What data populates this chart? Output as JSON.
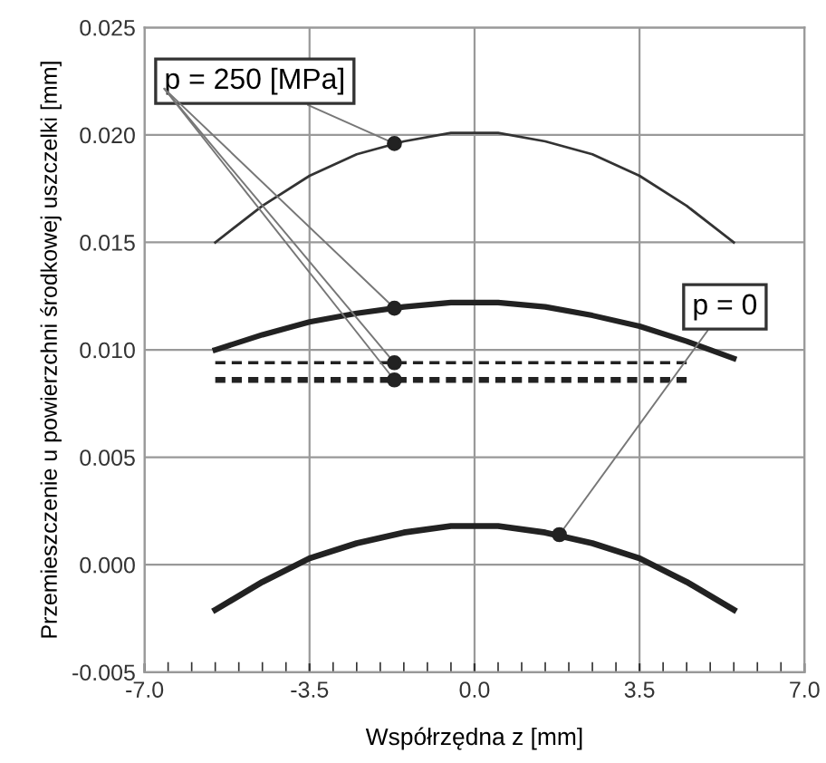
{
  "chart_data": {
    "type": "line",
    "xlabel": "Współrzędna z [mm]",
    "ylabel": "Przemieszczenie u powierzchni środkowej uszczelki [mm]",
    "xlim": [
      -7.0,
      7.0
    ],
    "xticks": [
      {
        "value": -7.0,
        "label": "-7.0"
      },
      {
        "value": -3.5,
        "label": "-3.5"
      },
      {
        "value": 0.0,
        "label": "0.0"
      },
      {
        "value": 3.5,
        "label": "3.5"
      },
      {
        "value": 7.0,
        "label": "7.0"
      },
      {
        "value": -6.5,
        "label": null
      },
      {
        "value": -6.0,
        "label": null
      },
      {
        "value": -5.5,
        "label": null
      },
      {
        "value": -5.0,
        "label": null
      },
      {
        "value": -4.5,
        "label": null
      },
      {
        "value": -4.0,
        "label": null
      },
      {
        "value": -3.0,
        "label": null
      },
      {
        "value": -2.5,
        "label": null
      },
      {
        "value": -2.0,
        "label": null
      },
      {
        "value": -1.5,
        "label": null
      },
      {
        "value": -1.0,
        "label": null
      },
      {
        "value": -0.5,
        "label": null
      },
      {
        "value": 0.5,
        "label": null
      },
      {
        "value": 1.0,
        "label": null
      },
      {
        "value": 1.5,
        "label": null
      },
      {
        "value": 2.0,
        "label": null
      },
      {
        "value": 2.5,
        "label": null
      },
      {
        "value": 3.0,
        "label": null
      },
      {
        "value": 4.0,
        "label": null
      },
      {
        "value": 4.5,
        "label": null
      },
      {
        "value": 5.0,
        "label": null
      },
      {
        "value": 5.5,
        "label": null
      },
      {
        "value": 6.0,
        "label": null
      },
      {
        "value": 6.5,
        "label": null
      }
    ],
    "ylim": [
      -0.005,
      0.025
    ],
    "yticks": [
      {
        "value": -0.005,
        "label": "-0.005"
      },
      {
        "value": 0.0,
        "label": "0.000"
      },
      {
        "value": 0.005,
        "label": "0.005"
      },
      {
        "value": 0.01,
        "label": "0.010"
      },
      {
        "value": 0.015,
        "label": "0.015"
      },
      {
        "value": 0.02,
        "label": "0.020"
      },
      {
        "value": 0.025,
        "label": "0.025"
      }
    ],
    "grid": true,
    "legend": false,
    "series": [
      {
        "color": "#333333",
        "line_style": "solid",
        "x": [
          -5.5,
          -4.5,
          -3.5,
          -2.5,
          -1.5,
          -0.5,
          0.5,
          1.5,
          2.5,
          3.5,
          4.5,
          5.5
        ],
        "values": [
          0.015,
          0.0167,
          0.0181,
          0.0191,
          0.0197,
          0.0201,
          0.0201,
          0.0197,
          0.0191,
          0.0181,
          0.0167,
          0.015
        ]
      },
      {
        "color": "#222222",
        "line_style": "solid",
        "x": [
          -5.5,
          -4.5,
          -3.5,
          -2.5,
          -1.5,
          -0.5,
          0.5,
          1.5,
          2.5,
          3.5,
          4.5,
          5.5
        ],
        "values": [
          0.01,
          0.0107,
          0.0113,
          0.0117,
          0.012,
          0.0122,
          0.0122,
          0.012,
          0.0116,
          0.0111,
          0.0104,
          0.0096
        ]
      },
      {
        "color": "#222222",
        "line_style": "dashed",
        "x": [
          -5.5,
          4.5
        ],
        "values": [
          0.0094,
          0.0094
        ]
      },
      {
        "color": "#222222",
        "line_style": "dashed",
        "x": [
          -5.5,
          4.5
        ],
        "values": [
          0.0086,
          0.0086
        ]
      },
      {
        "color": "#222222",
        "line_style": "solid",
        "x": [
          -5.5,
          -4.5,
          -3.5,
          -2.5,
          -1.5,
          -0.5,
          0.5,
          1.5,
          2.5,
          3.5,
          4.5,
          5.5
        ],
        "values": [
          -0.0021,
          -0.0008,
          0.0003,
          0.001,
          0.0015,
          0.0018,
          0.0018,
          0.0015,
          0.001,
          0.0003,
          -0.0008,
          -0.0021
        ]
      }
    ],
    "annotations": [
      {
        "text": "p = 250 [MPa]",
        "x": -1.7,
        "y": 0.0196
      },
      {
        "text": "p = 0",
        "x": 1.8,
        "y": 0.0014
      }
    ]
  }
}
